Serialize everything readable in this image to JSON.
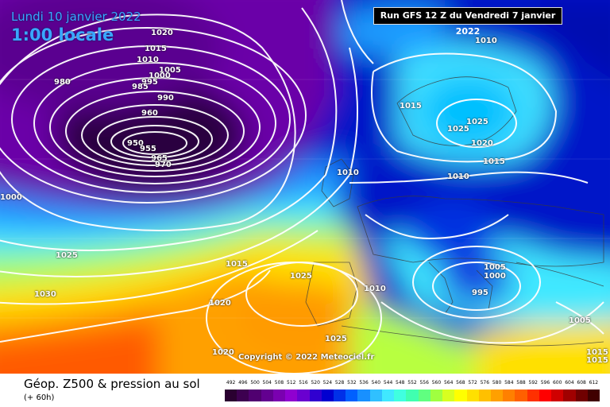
{
  "header": {
    "date_line": "Lundi 10 janvier 2022",
    "time_line": "1:00 locale",
    "run_info": "Run GFS 12 Z du Vendredi 7 janvier 2022"
  },
  "isobar_labels": [
    "1020",
    "1015",
    "1010",
    "1005",
    "1000",
    "995",
    "990",
    "985",
    "980",
    "960",
    "950",
    "955",
    "965",
    "970",
    "1015",
    "1025",
    "1025",
    "1020",
    "1015",
    "1010",
    "1010",
    "1010",
    "1005",
    "1000",
    "995",
    "1000",
    "1025",
    "1015",
    "1030",
    "1020",
    "1025",
    "1010",
    "1025",
    "1020",
    "1005",
    "1015",
    "1015"
  ],
  "copyright": "Copyright © 2022 Meteociel.fr",
  "footer": {
    "title": "Géop. Z500 & pression au sol",
    "subtitle": "(+ 60h)"
  },
  "scale": {
    "labels": [
      "492",
      "496",
      "500",
      "504",
      "508",
      "512",
      "516",
      "520",
      "524",
      "528",
      "532",
      "536",
      "540",
      "544",
      "548",
      "552",
      "556",
      "560",
      "564",
      "568",
      "572",
      "576",
      "580",
      "584",
      "588",
      "592",
      "596",
      "600",
      "604",
      "608",
      "612"
    ],
    "colors": [
      "#2a0030",
      "#3d0050",
      "#500070",
      "#630090",
      "#7a00b0",
      "#9000d0",
      "#6a00d0",
      "#3000d0",
      "#0000d0",
      "#0030e8",
      "#0060ff",
      "#1890ff",
      "#30c0ff",
      "#40e8ff",
      "#40ffe0",
      "#40ffb0",
      "#60ff80",
      "#a0ff40",
      "#d8ff20",
      "#ffff00",
      "#ffe000",
      "#ffc000",
      "#ffa000",
      "#ff8000",
      "#ff6000",
      "#ff3000",
      "#ff0000",
      "#d00000",
      "#a00000",
      "#700000",
      "#400000"
    ]
  }
}
